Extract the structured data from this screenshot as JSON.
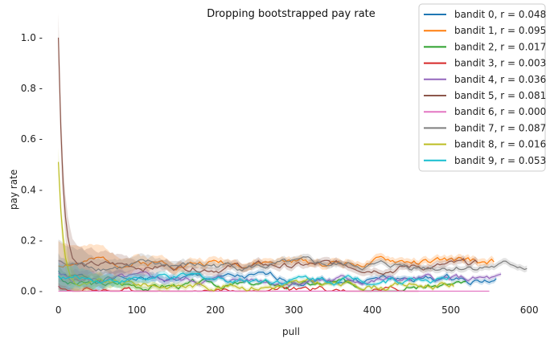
{
  "chart_data": {
    "type": "line",
    "title": "Dropping bootstrapped pay rate",
    "xlabel": "pull",
    "ylabel": "pay rate",
    "xlim": [
      -15,
      610
    ],
    "ylim": [
      -0.03,
      1.06
    ],
    "xticks": [
      0,
      100,
      200,
      300,
      400,
      500,
      600
    ],
    "yticks": [
      0.0,
      0.2,
      0.4,
      0.6,
      0.8,
      1.0
    ],
    "xtick_labels": [
      "0",
      "100",
      "200",
      "300",
      "400",
      "500",
      "600"
    ],
    "ytick_labels": [
      "0.0 -",
      "0.2 -",
      "0.4 -",
      "0.6 -",
      "0.8 -",
      "1.0 -"
    ],
    "grid": false,
    "legend_position": "top-right",
    "series": [
      {
        "name": "bandit 0, r = 0.048",
        "color": "#1f77b4",
        "length": 560,
        "final": 0.048,
        "start_peak": 0.08,
        "band": 0.01,
        "seed": 1
      },
      {
        "name": "bandit 1, r = 0.095",
        "color": "#ff7f0e",
        "length": 555,
        "final": 0.115,
        "start_peak": 0.1,
        "band": 0.014,
        "seed": 2
      },
      {
        "name": "bandit 2, r = 0.017",
        "color": "#2ca02c",
        "length": 520,
        "final": 0.025,
        "start_peak": 0.06,
        "band": 0.006,
        "seed": 3
      },
      {
        "name": "bandit 3, r = 0.003",
        "color": "#d62728",
        "length": 460,
        "final": 0.003,
        "start_peak": 0.02,
        "band": 0.002,
        "seed": 4
      },
      {
        "name": "bandit 4, r = 0.036",
        "color": "#9467bd",
        "length": 565,
        "final": 0.045,
        "start_peak": 0.07,
        "band": 0.008,
        "seed": 5
      },
      {
        "name": "bandit 5, r = 0.081",
        "color": "#8c564b",
        "length": 535,
        "final": 0.1,
        "start_peak": 1.0,
        "band": 0.014,
        "seed": 6
      },
      {
        "name": "bandit 6, r = 0.000",
        "color": "#e377c2",
        "length": 550,
        "final": 0.0,
        "start_peak": 0.0,
        "band": 0.0,
        "seed": 7
      },
      {
        "name": "bandit 7, r = 0.087",
        "color": "#7f7f7f",
        "length": 598,
        "final": 0.1,
        "start_peak": 0.12,
        "band": 0.012,
        "seed": 8
      },
      {
        "name": "bandit 8, r = 0.016",
        "color": "#bcbd22",
        "length": 505,
        "final": 0.025,
        "start_peak": 0.51,
        "band": 0.008,
        "seed": 9
      },
      {
        "name": "bandit 9, r = 0.053",
        "color": "#17becf",
        "length": 500,
        "final": 0.05,
        "start_peak": 0.06,
        "band": 0.008,
        "seed": 10
      }
    ]
  }
}
